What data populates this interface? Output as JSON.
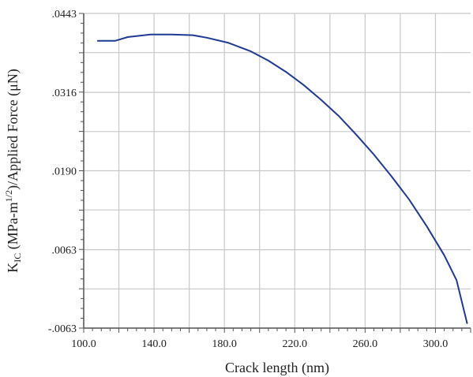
{
  "chart_data": {
    "type": "line",
    "title": "",
    "xlabel": "Crack length (nm)",
    "ylabel": {
      "prefix": "K",
      "subscript": "IC",
      "mid": " (MPa-m",
      "superscript": "1/2",
      "suffix": ")/Applied Force (μN)"
    },
    "xlim": [
      100,
      320
    ],
    "ylim": [
      -0.0063,
      0.0443
    ],
    "x_ticks": [
      "100.0",
      "140.0",
      "180.0",
      "220.0",
      "260.0",
      "300.0"
    ],
    "x_tick_values": [
      100,
      140,
      180,
      220,
      260,
      300
    ],
    "x_grid": [
      100,
      120,
      140,
      160,
      180,
      200,
      220,
      240,
      260,
      280,
      300
    ],
    "y_ticks": [
      ".0443",
      ".0316",
      ".0190",
      ".0063",
      "-.0063"
    ],
    "y_tick_values": [
      0.0443,
      0.0316,
      0.019,
      0.0063,
      -0.0063
    ],
    "y_grid": [
      0.0443,
      0.038,
      0.0316,
      0.0253,
      0.019,
      0.0127,
      0.0063,
      0.0,
      -0.0063
    ],
    "grid": true,
    "color": "#1f3a93",
    "series": [
      {
        "x": [
          108,
          118,
          125,
          138,
          150,
          162,
          170,
          182,
          195,
          205,
          215,
          225,
          235,
          245,
          255,
          265,
          275,
          285,
          295,
          305,
          312,
          318
        ],
        "y": [
          0.0399,
          0.0399,
          0.0405,
          0.0409,
          0.0409,
          0.0408,
          0.0404,
          0.0396,
          0.0382,
          0.0367,
          0.0349,
          0.0328,
          0.0304,
          0.0278,
          0.0248,
          0.0216,
          0.0181,
          0.0144,
          0.0101,
          0.0054,
          0.0014,
          -0.0055
        ]
      }
    ]
  }
}
